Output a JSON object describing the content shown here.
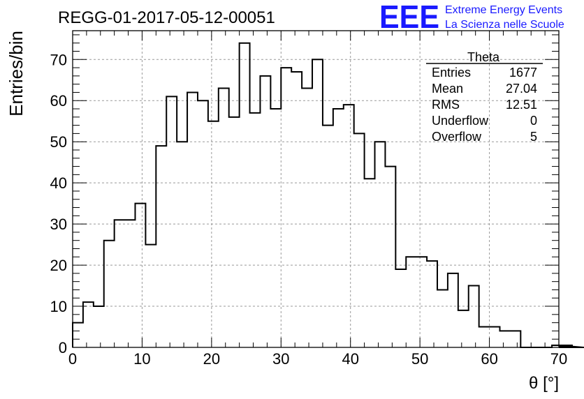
{
  "chart_data": {
    "type": "bar",
    "title": "REGG-01-2017-05-12-00051",
    "xlabel": "θ [°]",
    "ylabel": "Entries/bin",
    "xlim": [
      0,
      70
    ],
    "ylim": [
      0,
      77
    ],
    "bin_width": 1.5,
    "x_ticks": [
      "0",
      "10",
      "20",
      "30",
      "40",
      "50",
      "60",
      "70"
    ],
    "y_ticks": [
      "0",
      "10",
      "20",
      "30",
      "40",
      "50",
      "60",
      "70"
    ],
    "grid": true,
    "values": [
      6,
      11,
      10,
      26,
      31,
      31,
      35,
      25,
      49,
      61,
      50,
      62,
      60,
      55,
      63,
      56,
      74,
      57,
      66,
      58,
      68,
      67,
      63,
      70,
      54,
      58,
      59,
      52,
      41,
      50,
      44,
      19,
      22,
      22,
      21,
      14,
      18,
      9,
      15,
      5,
      5,
      4,
      4,
      0,
      0,
      0,
      0.5,
      0,
      0.5,
      0,
      0,
      0,
      0,
      0,
      0,
      0,
      0,
      0,
      0,
      0
    ],
    "stats": {
      "title": "Theta",
      "rows": [
        {
          "label": "Entries",
          "value": "1677"
        },
        {
          "label": "Mean",
          "value": "27.04"
        },
        {
          "label": "RMS",
          "value": "12.51"
        },
        {
          "label": "Underflow",
          "value": "0"
        },
        {
          "label": "Overflow",
          "value": "5"
        }
      ]
    }
  },
  "logo": {
    "mark": "EEE",
    "line1": "Extreme Energy Events",
    "line2": "La Scienza nelle Scuole",
    "color": "#1a1aff"
  }
}
